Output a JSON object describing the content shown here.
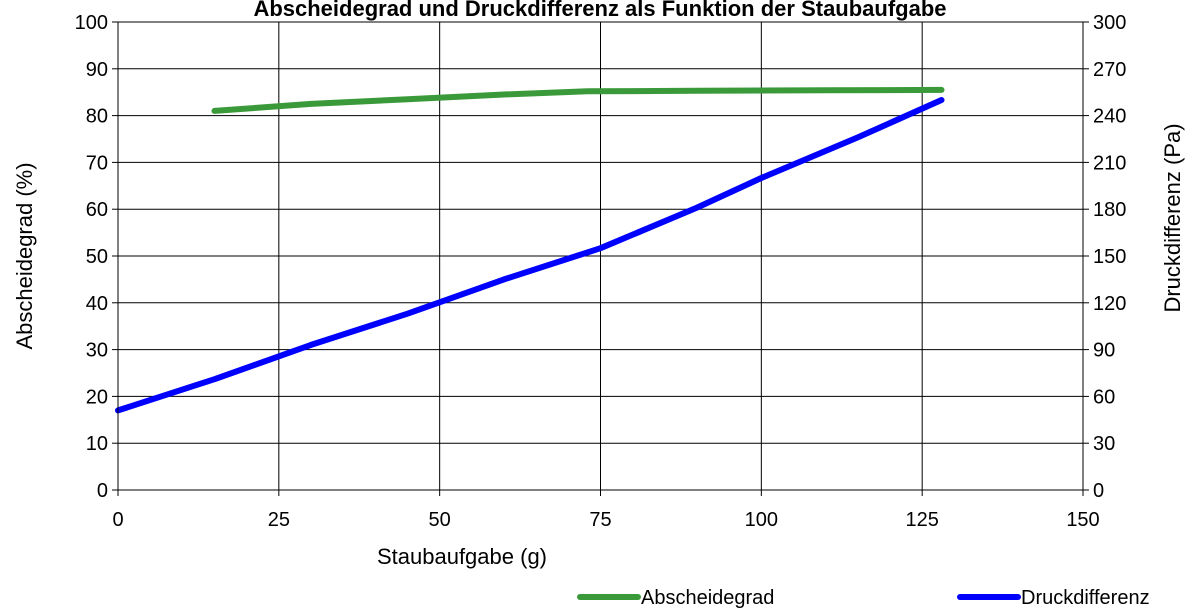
{
  "chart_data": {
    "type": "line",
    "title": "Abscheidegrad und Druckdifferenz als Funktion der Staubaufgabe",
    "xlabel": "Staubaufgabe (g)",
    "ylabel": "Abscheidegrad (%)",
    "y2label": "Druckdifferenz (Pa)",
    "xlim": [
      0,
      150
    ],
    "ylim": [
      0,
      100
    ],
    "y2lim": [
      0,
      300
    ],
    "xticks": [
      0,
      25,
      50,
      75,
      100,
      125,
      150
    ],
    "yticks": [
      0,
      10,
      20,
      30,
      40,
      50,
      60,
      70,
      80,
      90,
      100
    ],
    "y2ticks": [
      0,
      30,
      60,
      90,
      120,
      150,
      180,
      210,
      240,
      270,
      300
    ],
    "grid": true,
    "legend_position": "bottom",
    "series": [
      {
        "name": "Abscheidegrad",
        "axis": "left",
        "color": "#3A9A3A",
        "x": [
          15,
          30,
          45,
          60,
          73,
          90,
          110,
          128
        ],
        "y": [
          81,
          82.5,
          83.5,
          84.5,
          85.2,
          85.3,
          85.4,
          85.5
        ]
      },
      {
        "name": "Druckdifferenz",
        "axis": "right",
        "color": "#0000FF",
        "x": [
          0,
          15,
          30,
          45,
          60,
          75,
          90,
          100,
          115,
          128
        ],
        "y": [
          51,
          71,
          93,
          113,
          135,
          155,
          181,
          200,
          226,
          250
        ]
      }
    ]
  }
}
